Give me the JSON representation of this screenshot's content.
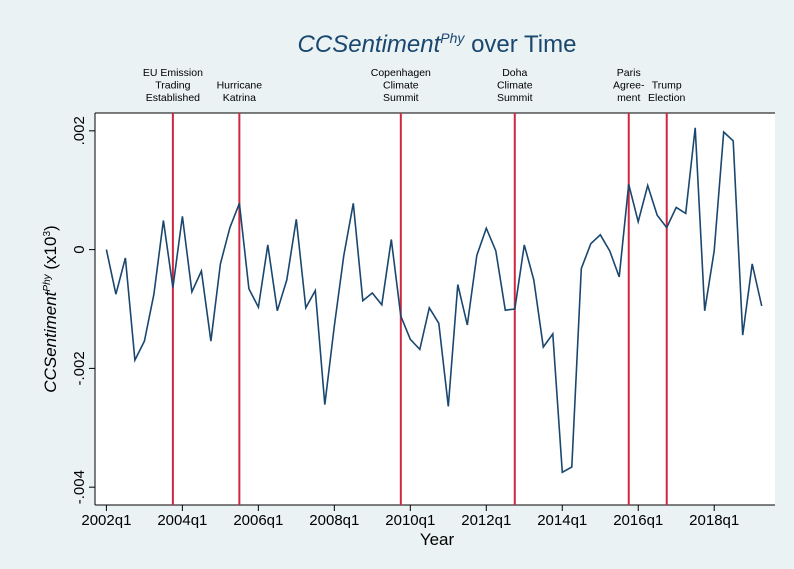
{
  "chart_data": {
    "type": "line",
    "title_parts": [
      "CCSentiment",
      "Phy",
      " over Time"
    ],
    "ylabel_parts": [
      "CCSentiment",
      "Phy",
      " (x10",
      "3",
      ")"
    ],
    "xlabel": "Year",
    "x": [
      2002,
      2002.25,
      2002.5,
      2002.75,
      2003,
      2003.25,
      2003.5,
      2003.75,
      2004,
      2004.25,
      2004.5,
      2004.75,
      2005,
      2005.25,
      2005.5,
      2005.75,
      2006,
      2006.25,
      2006.5,
      2006.75,
      2007,
      2007.25,
      2007.5,
      2007.75,
      2008,
      2008.25,
      2008.5,
      2008.75,
      2009,
      2009.25,
      2009.5,
      2009.75,
      2010,
      2010.25,
      2010.5,
      2010.75,
      2011,
      2011.25,
      2011.5,
      2011.75,
      2012,
      2012.25,
      2012.5,
      2012.75,
      2013,
      2013.25,
      2013.5,
      2013.75,
      2014,
      2014.25,
      2014.5,
      2014.75,
      2015,
      2015.25,
      2015.5,
      2015.75,
      2016,
      2016.25,
      2016.5,
      2016.75,
      2017,
      2017.25,
      2017.5,
      2017.75,
      2018,
      2018.25,
      2018.5,
      2018.75,
      2019,
      2019.25
    ],
    "series": [
      {
        "color": "#1a476f",
        "values": [
          0,
          -0.00075,
          -0.00014,
          -0.00186,
          -0.00154,
          -0.00075,
          0.00049,
          -0.00064,
          0.00056,
          -0.00071,
          -0.00036,
          -0.00154,
          -0.00024,
          0.00037,
          0.00078,
          -0.00066,
          -0.00097,
          8e-05,
          -0.00103,
          -0.00051,
          0.00051,
          -0.00098,
          -0.00069,
          -0.00261,
          -0.00129,
          -0.0001,
          0.00078,
          -0.00086,
          -0.00073,
          -0.00093,
          0.00017,
          -0.00112,
          -0.00151,
          -0.00168,
          -0.00098,
          -0.00124,
          -0.00264,
          -0.00059,
          -0.00127,
          -0.0001,
          0.00036,
          -2e-05,
          -0.00102,
          -0.001,
          8e-05,
          -0.00051,
          -0.00164,
          -0.00142,
          -0.00375,
          -0.00366,
          -0.00032,
          0.0001,
          0.00025,
          -2e-05,
          -0.00046,
          0.0011,
          0.00047,
          0.00108,
          0.00058,
          0.00037,
          0.00071,
          0.00061,
          0.00205,
          -0.00103,
          -2e-05,
          0.00198,
          0.00183,
          -0.00144,
          -0.00024,
          -0.00095
        ]
      }
    ],
    "xlim": [
      2001.7,
      2019.6
    ],
    "ylim": [
      -0.0043,
      0.0023
    ],
    "xticks": [
      {
        "value": 2002,
        "label": "2002q1"
      },
      {
        "value": 2004,
        "label": "2004q1"
      },
      {
        "value": 2006,
        "label": "2006q1"
      },
      {
        "value": 2008,
        "label": "2008q1"
      },
      {
        "value": 2010,
        "label": "2010q1"
      },
      {
        "value": 2012,
        "label": "2012q1"
      },
      {
        "value": 2014,
        "label": "2014q1"
      },
      {
        "value": 2016,
        "label": "2016q1"
      },
      {
        "value": 2018,
        "label": "2018q1"
      }
    ],
    "yticks": [
      {
        "value": 0.002,
        "label": ".002"
      },
      0,
      {
        "value": -0.002,
        "label": "-.002"
      },
      {
        "value": -0.004,
        "label": "-.004"
      }
    ],
    "event_color": "#d0263f",
    "events": [
      {
        "x": 2003.75,
        "lines": [
          "EU Emission",
          "Trading",
          "Established"
        ]
      },
      {
        "x": 2005.5,
        "lines": [
          "Hurricane",
          "Katrina"
        ]
      },
      {
        "x": 2009.75,
        "lines": [
          "Copenhagen",
          "Climate",
          "Summit"
        ]
      },
      {
        "x": 2012.75,
        "lines": [
          "Doha",
          "Climate",
          "Summit"
        ]
      },
      {
        "x": 2015.75,
        "lines": [
          "Paris",
          "Agree-",
          "ment"
        ]
      },
      {
        "x": 2016.75,
        "lines": [
          "Trump",
          "Election"
        ]
      }
    ]
  }
}
